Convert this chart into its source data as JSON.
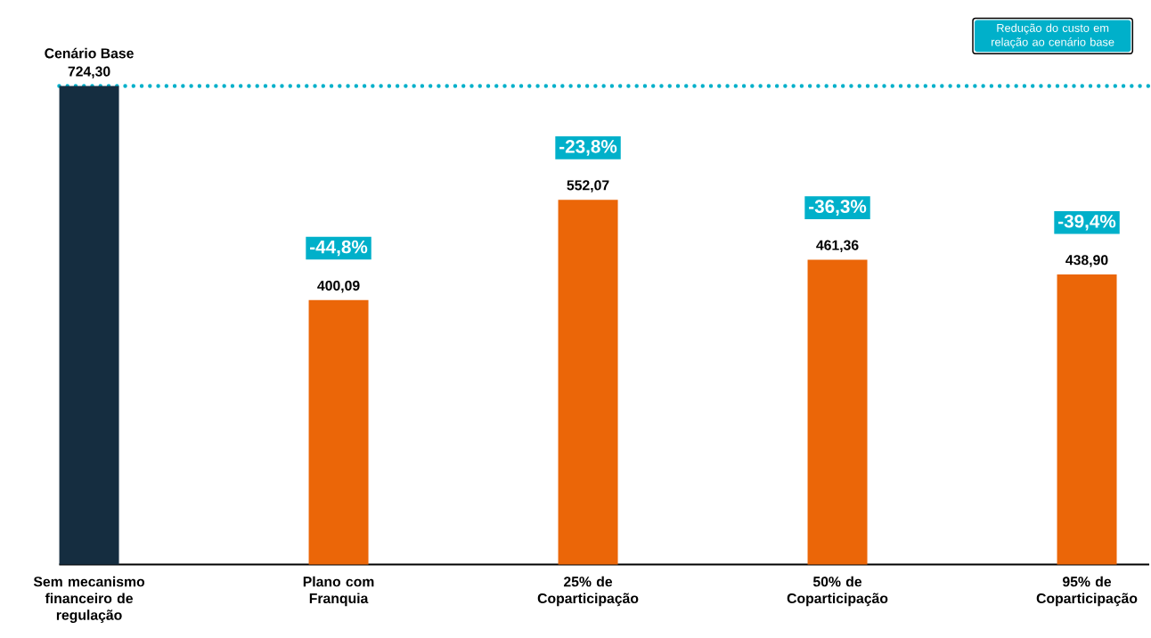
{
  "chart_data": {
    "type": "bar",
    "categories": [
      "Sem mecanismo financeiro de regulação",
      "Plano com Franquia",
      "25% de Coparticipação",
      "50% de Coparticipação",
      "95% de Coparticipação"
    ],
    "values": [
      724.3,
      400.09,
      552.07,
      461.36,
      438.9
    ],
    "colors": [
      "#152d40",
      "#eb6608",
      "#eb6608",
      "#eb6608",
      "#eb6608"
    ],
    "value_labels": [
      "724,30",
      "400,09",
      "552,07",
      "461,36",
      "438,90"
    ],
    "tick_labels": "x",
    "ref_lines": [
      {
        "axis": "y",
        "value": 724.3,
        "color": "#00b0ca",
        "line_style": "dotted"
      }
    ],
    "annotations": [
      "Cenário Base",
      "-44,8%",
      "-23,8%",
      "-36,3%",
      "-39,4%",
      "Redução do custo em relação ao cenário base"
    ]
  }
}
